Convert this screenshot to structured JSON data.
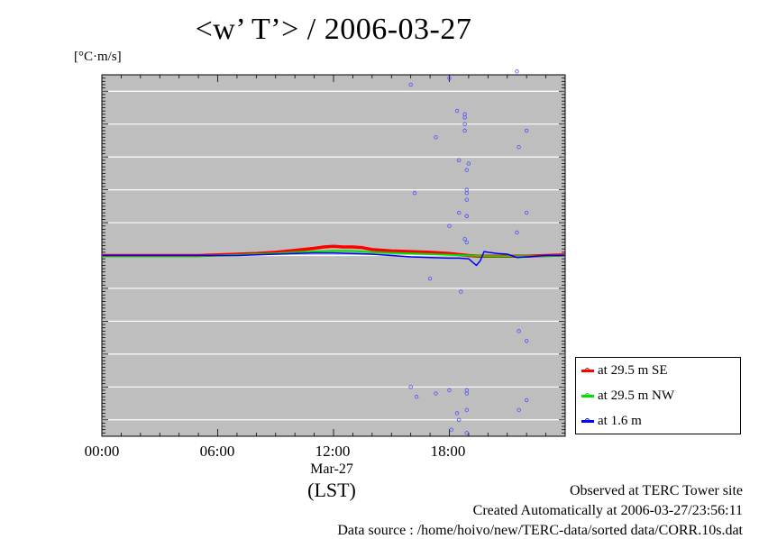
{
  "page": {
    "title": "<w’ T’> / 2006-03-27",
    "unit": "[°C·m/s]",
    "x_ticks": [
      "00:00",
      "06:00",
      "12:00",
      "18:00"
    ],
    "date_label": "Mar-27",
    "timezone_label": "(LST)",
    "footer": {
      "observed": "Observed at TERC Tower site",
      "created": "Created Automatically at 2006-03-27/23:56:11",
      "source": "Data source : /home/hoivo/new/TERC-data/sorted  data/CORR.10s.dat"
    }
  },
  "chart_data": {
    "type": "line",
    "x_unit": "hours (LST)",
    "xlim": [
      0,
      24
    ],
    "ylim": [
      -0.55,
      0.55
    ],
    "grid": "horizontal",
    "background": "#bebebe",
    "legend_position": "bottom-right",
    "series": [
      {
        "name": "at 29.5 m SE",
        "color": "#ff0000",
        "x": [
          0,
          1,
          2,
          3,
          4,
          5,
          6,
          7,
          8,
          9,
          10,
          11,
          11.5,
          12,
          12.5,
          13,
          13.5,
          14,
          15,
          16,
          17,
          18,
          19,
          19.5,
          20,
          21,
          22,
          23,
          24
        ],
        "y": [
          0.0,
          0.0,
          0.0,
          0.0,
          0.0,
          0.0,
          0.002,
          0.004,
          0.006,
          0.01,
          0.016,
          0.022,
          0.026,
          0.028,
          0.026,
          0.026,
          0.024,
          0.018,
          0.014,
          0.012,
          0.01,
          0.006,
          0.0,
          -0.002,
          -0.002,
          -0.002,
          -0.002,
          0.0,
          0.002
        ]
      },
      {
        "name": "at 29.5 m NW",
        "color": "#00e000",
        "x": [
          0,
          1,
          2,
          3,
          4,
          5,
          6,
          7,
          8,
          9,
          10,
          11,
          12,
          13,
          14,
          15,
          16,
          17,
          18,
          19,
          20,
          21,
          22,
          23,
          24
        ],
        "y": [
          -0.002,
          -0.002,
          -0.002,
          -0.002,
          -0.002,
          -0.002,
          0.0,
          0.002,
          0.004,
          0.006,
          0.01,
          0.012,
          0.014,
          0.014,
          0.01,
          0.008,
          0.006,
          0.004,
          0.002,
          0.0,
          -0.002,
          -0.002,
          -0.002,
          -0.002,
          0.0
        ]
      },
      {
        "name": "at 1.6 m",
        "color": "#0000ff",
        "x": [
          0,
          1,
          2,
          3,
          4,
          5,
          6,
          7,
          8,
          9,
          10,
          11,
          12,
          13,
          14,
          15,
          16,
          17,
          18,
          18.5,
          19,
          19.2,
          19.4,
          19.6,
          19.8,
          20,
          20.5,
          21,
          21.5,
          22,
          23,
          24
        ],
        "y": [
          0.0,
          0.0,
          0.0,
          0.0,
          0.0,
          0.0,
          0.0,
          0.0,
          0.002,
          0.004,
          0.006,
          0.008,
          0.008,
          0.006,
          0.004,
          0.0,
          -0.004,
          -0.006,
          -0.008,
          -0.008,
          -0.01,
          -0.02,
          -0.03,
          -0.016,
          0.012,
          0.01,
          0.006,
          0.004,
          -0.006,
          -0.004,
          0.0,
          0.0
        ]
      }
    ],
    "scatter_points": [
      {
        "x": 16.0,
        "y": 0.52
      },
      {
        "x": 18.0,
        "y": 0.54
      },
      {
        "x": 21.5,
        "y": 0.56
      },
      {
        "x": 18.4,
        "y": 0.44
      },
      {
        "x": 18.8,
        "y": 0.42
      },
      {
        "x": 18.8,
        "y": 0.43
      },
      {
        "x": 17.3,
        "y": 0.36
      },
      {
        "x": 18.8,
        "y": 0.38
      },
      {
        "x": 18.8,
        "y": 0.4
      },
      {
        "x": 22.0,
        "y": 0.38
      },
      {
        "x": 21.6,
        "y": 0.33
      },
      {
        "x": 18.5,
        "y": 0.29
      },
      {
        "x": 19.0,
        "y": 0.28
      },
      {
        "x": 18.9,
        "y": 0.26
      },
      {
        "x": 16.2,
        "y": 0.19
      },
      {
        "x": 18.9,
        "y": 0.2
      },
      {
        "x": 18.9,
        "y": 0.19
      },
      {
        "x": 18.9,
        "y": 0.17
      },
      {
        "x": 18.5,
        "y": 0.13
      },
      {
        "x": 18.9,
        "y": 0.12
      },
      {
        "x": 18.9,
        "y": 0.12
      },
      {
        "x": 22.0,
        "y": 0.13
      },
      {
        "x": 18.0,
        "y": 0.09
      },
      {
        "x": 21.5,
        "y": 0.07
      },
      {
        "x": 18.8,
        "y": 0.05
      },
      {
        "x": 18.9,
        "y": 0.04
      },
      {
        "x": 17.0,
        "y": -0.07
      },
      {
        "x": 18.6,
        "y": -0.11
      },
      {
        "x": 21.6,
        "y": -0.23
      },
      {
        "x": 22.0,
        "y": -0.26
      },
      {
        "x": 16.0,
        "y": -0.4
      },
      {
        "x": 16.3,
        "y": -0.43
      },
      {
        "x": 17.3,
        "y": -0.42
      },
      {
        "x": 18.0,
        "y": -0.41
      },
      {
        "x": 18.9,
        "y": -0.41
      },
      {
        "x": 18.9,
        "y": -0.42
      },
      {
        "x": 22.0,
        "y": -0.44
      },
      {
        "x": 21.6,
        "y": -0.47
      },
      {
        "x": 18.9,
        "y": -0.47
      },
      {
        "x": 18.4,
        "y": -0.48
      },
      {
        "x": 18.5,
        "y": -0.5
      },
      {
        "x": 18.1,
        "y": -0.53
      },
      {
        "x": 18.9,
        "y": -0.54
      }
    ]
  }
}
